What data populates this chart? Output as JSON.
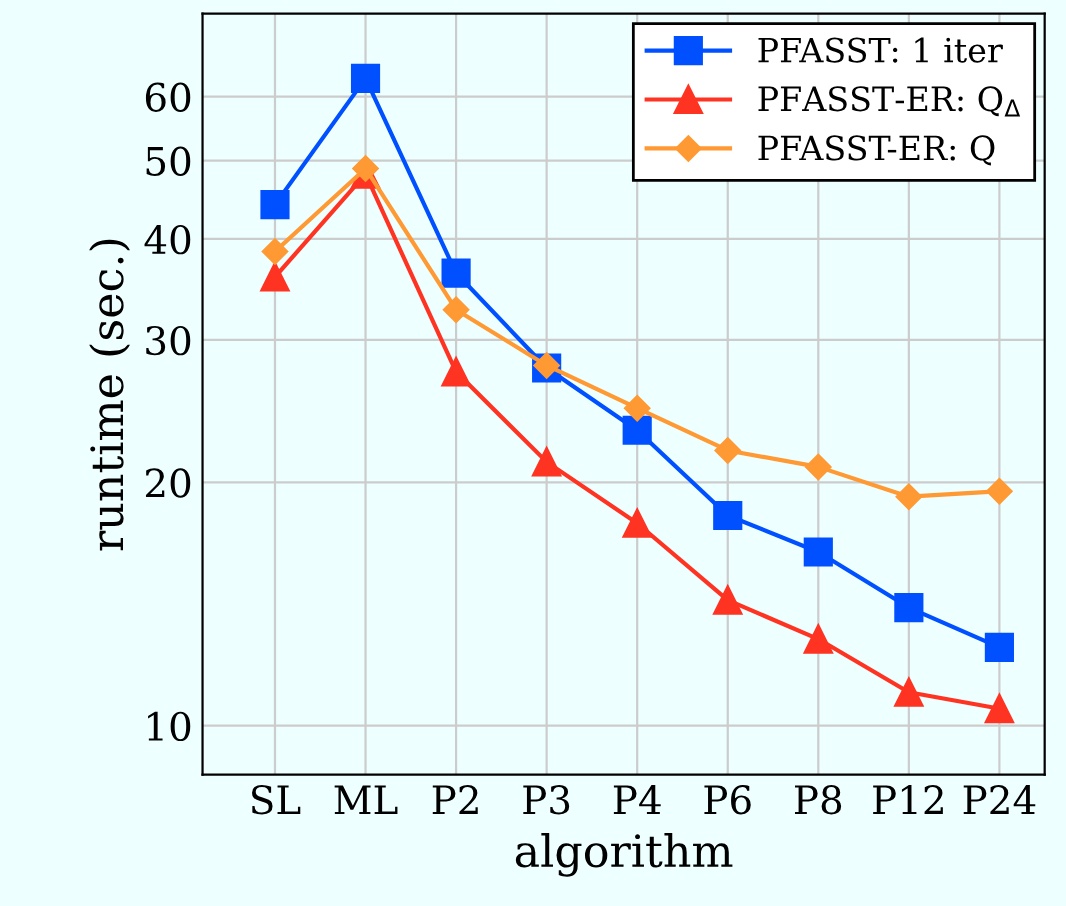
{
  "chart_data": {
    "type": "line",
    "xlabel": "algorithm",
    "ylabel": "runtime (sec.)",
    "categories": [
      "SL",
      "ML",
      "P2",
      "P3",
      "P4",
      "P6",
      "P8",
      "P12",
      "P24"
    ],
    "series": [
      {
        "name": "PFASST: 1 iter",
        "color": "#0050ff",
        "marker": "square",
        "values": [
          44.1,
          63.2,
          36.3,
          27.7,
          23.2,
          18.2,
          16.4,
          14.0,
          12.5
        ]
      },
      {
        "name": "PFASST-ER: Q$_{Δ}$",
        "color": "#ff3322",
        "marker": "triangle",
        "values": [
          35.9,
          48.1,
          27.4,
          21.2,
          17.8,
          14.3,
          12.8,
          11.0,
          10.5
        ]
      },
      {
        "name": "PFASST-ER: Q",
        "color": "#ff9933",
        "marker": "diamond",
        "values": [
          38.6,
          48.9,
          32.7,
          27.9,
          24.7,
          21.9,
          20.9,
          19.2,
          19.5
        ]
      }
    ],
    "log": "y",
    "ylim": [
      8.7,
      76
    ],
    "yticks": [
      10,
      20,
      30,
      40,
      50,
      60
    ],
    "grid": true,
    "legend": "top right",
    "line_style": "solid"
  }
}
